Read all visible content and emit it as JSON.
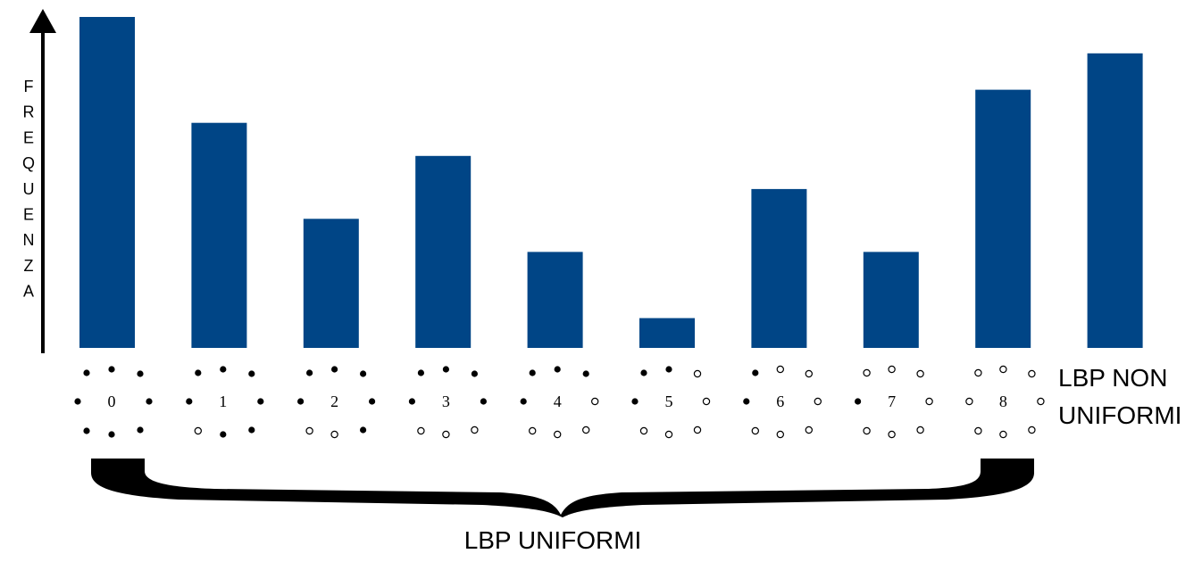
{
  "chart_data": {
    "type": "bar",
    "ylabel": "FREQUENZA",
    "categories": [
      "0",
      "1",
      "2",
      "3",
      "4",
      "5",
      "6",
      "7",
      "8",
      ""
    ],
    "values": [
      10,
      6.8,
      3.9,
      5.8,
      2.9,
      0.9,
      4.8,
      2.9,
      7.8,
      8.9
    ],
    "bar_color": "#004586",
    "grid": false,
    "annotations": {
      "non_uniform_line1": "LBP NON",
      "non_uniform_line2": "UNIFORMI",
      "uniform": "LBP UNIFORMI"
    },
    "patterns": [
      {
        "label": "0",
        "filled": [
          true,
          true,
          true,
          true,
          true,
          true,
          true,
          true
        ]
      },
      {
        "label": "1",
        "filled": [
          true,
          false,
          true,
          true,
          true,
          true,
          true,
          true
        ]
      },
      {
        "label": "2",
        "filled": [
          true,
          false,
          false,
          true,
          true,
          true,
          true,
          true
        ]
      },
      {
        "label": "3",
        "filled": [
          true,
          false,
          false,
          false,
          true,
          true,
          true,
          true
        ]
      },
      {
        "label": "4",
        "filled": [
          true,
          false,
          false,
          false,
          false,
          true,
          true,
          true
        ]
      },
      {
        "label": "5",
        "filled": [
          true,
          false,
          false,
          false,
          false,
          false,
          true,
          true
        ]
      },
      {
        "label": "6",
        "filled": [
          true,
          false,
          false,
          false,
          false,
          false,
          false,
          true
        ]
      },
      {
        "label": "7",
        "filled": [
          true,
          false,
          false,
          false,
          false,
          false,
          false,
          false
        ]
      },
      {
        "label": "8",
        "filled": [
          false,
          false,
          false,
          false,
          false,
          false,
          false,
          false
        ]
      }
    ]
  }
}
